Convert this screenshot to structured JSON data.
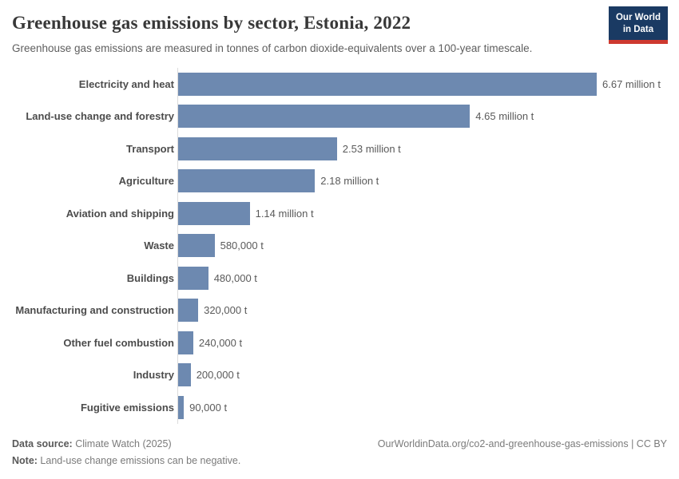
{
  "header": {
    "title": "Greenhouse gas emissions by sector, Estonia, 2022",
    "subtitle": "Greenhouse gas emissions are measured in tonnes of carbon dioxide-equivalents over a 100-year timescale.",
    "logo": {
      "line1": "Our World",
      "line2": "in Data",
      "bg_color": "#1a3a63",
      "accent_color": "#ce392f"
    }
  },
  "chart_data": {
    "type": "bar",
    "orientation": "horizontal",
    "title": "Greenhouse gas emissions by sector, Estonia, 2022",
    "unit": "tonnes of carbon dioxide-equivalents",
    "categories": [
      "Electricity and heat",
      "Land-use change and forestry",
      "Transport",
      "Agriculture",
      "Aviation and shipping",
      "Waste",
      "Buildings",
      "Manufacturing and construction",
      "Other fuel combustion",
      "Industry",
      "Fugitive emissions"
    ],
    "values_million_t": [
      6.67,
      4.65,
      2.53,
      2.18,
      1.14,
      0.58,
      0.48,
      0.32,
      0.24,
      0.2,
      0.09
    ],
    "value_labels": [
      "6.67 million t",
      "4.65 million t",
      "2.53 million t",
      "2.18 million t",
      "1.14 million t",
      "580,000 t",
      "480,000 t",
      "320,000 t",
      "240,000 t",
      "200,000 t",
      "90,000 t"
    ],
    "xlim": [
      0,
      6.67
    ],
    "grid": false,
    "legend": false,
    "bar_color": "#6d89b0",
    "axis_line_color": "#dcdcdc"
  },
  "footer": {
    "data_source_label": "Data source:",
    "data_source_value": " Climate Watch (2025)",
    "note_label": "Note:",
    "note_value": " Land-use change emissions can be negative.",
    "citation": "OurWorldinData.org/co2-and-greenhouse-gas-emissions | CC BY"
  }
}
